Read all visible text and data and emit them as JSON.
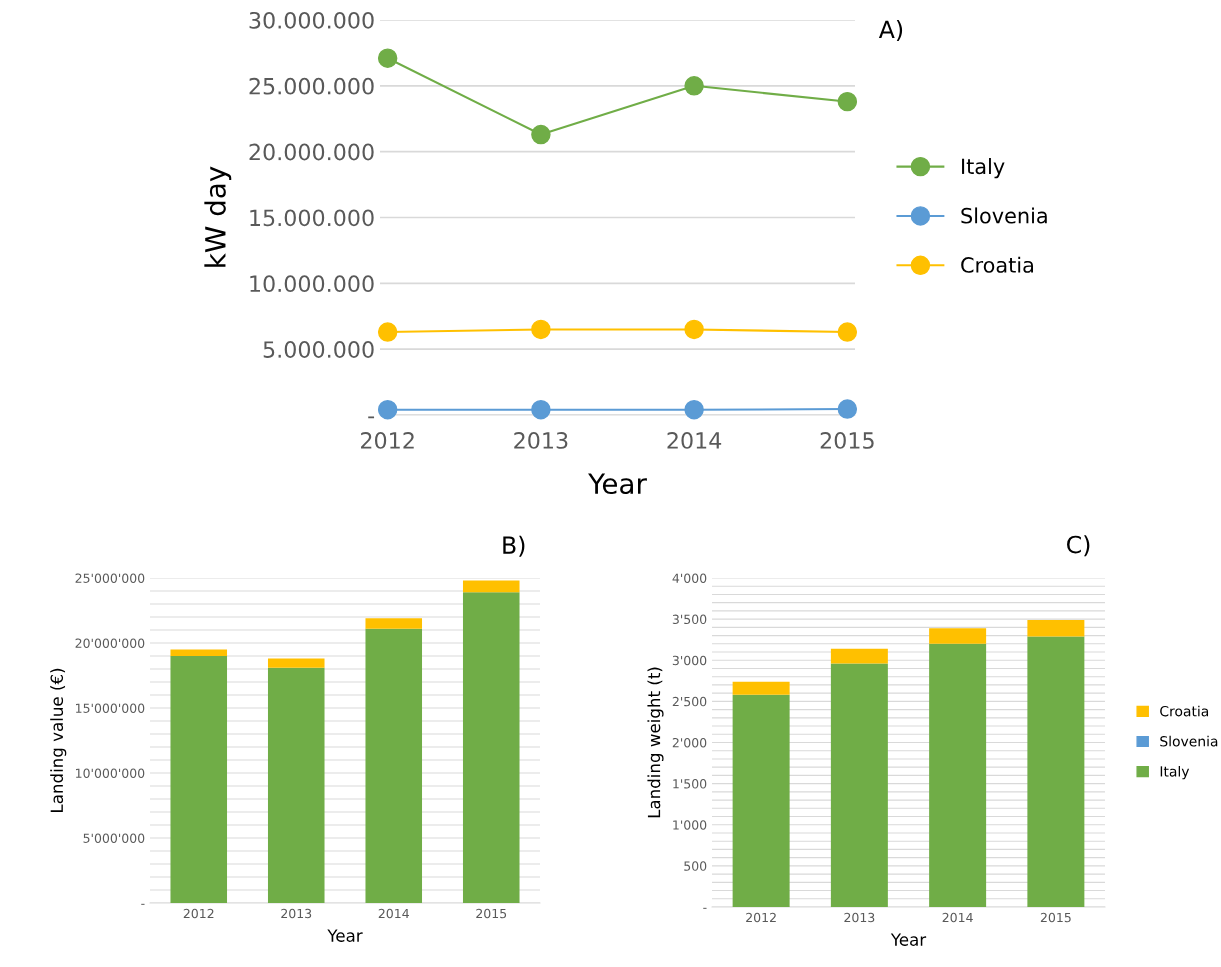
{
  "chart_data": [
    {
      "type": "line",
      "xlabel": "Year",
      "ylabel": "kW day",
      "annotations": [
        "A)"
      ],
      "categories": [
        "2012",
        "2013",
        "2014",
        "2015"
      ],
      "series": [
        {
          "name": "Italy",
          "color": "#70ad47",
          "values": [
            27100000,
            21300000,
            25000000,
            23800000
          ]
        },
        {
          "name": "Slovenia",
          "color": "#5b9bd5",
          "values": [
            400000,
            400000,
            400000,
            450000
          ]
        },
        {
          "name": "Croatia",
          "color": "#ffc000",
          "values": [
            6300000,
            6500000,
            6500000,
            6300000
          ]
        }
      ],
      "ylim": [
        0,
        30000000
      ],
      "yticks": [
        {
          "value": 0,
          "label": "-"
        },
        {
          "value": 5000000,
          "label": "5.000.000"
        },
        {
          "value": 10000000,
          "label": "10.000.000"
        },
        {
          "value": 15000000,
          "label": "15.000.000"
        },
        {
          "value": 20000000,
          "label": "20.000.000"
        },
        {
          "value": 25000000,
          "label": "25.000.000"
        },
        {
          "value": 30000000,
          "label": "30.000.000"
        }
      ],
      "grid": "y",
      "legend": "right",
      "marker": "circle",
      "line_style": "solid"
    },
    {
      "type": "bar",
      "stacked": true,
      "xlabel": "Year",
      "ylabel": "Landing value (€)",
      "annotations": [
        "B)"
      ],
      "categories": [
        "2012",
        "2013",
        "2014",
        "2015"
      ],
      "series": [
        {
          "color": "#70ad47",
          "values": [
            19000000,
            18100000,
            21100000,
            23900000
          ]
        },
        {
          "color": "#5b9bd5",
          "values": [
            0,
            0,
            0,
            0
          ]
        },
        {
          "color": "#ffc000",
          "values": [
            500000,
            700000,
            800000,
            900000
          ]
        }
      ],
      "ylim": [
        0,
        25000000
      ],
      "yticks": [
        {
          "value": 0,
          "label": "-"
        },
        {
          "value": 1000000,
          "label": null
        },
        {
          "value": 2000000,
          "label": null
        },
        {
          "value": 3000000,
          "label": null
        },
        {
          "value": 4000000,
          "label": null
        },
        {
          "value": 5000000,
          "label": "5'000'000"
        },
        {
          "value": 6000000,
          "label": null
        },
        {
          "value": 7000000,
          "label": null
        },
        {
          "value": 8000000,
          "label": null
        },
        {
          "value": 9000000,
          "label": null
        },
        {
          "value": 10000000,
          "label": "10'000'000"
        },
        {
          "value": 11000000,
          "label": null
        },
        {
          "value": 12000000,
          "label": null
        },
        {
          "value": 13000000,
          "label": null
        },
        {
          "value": 14000000,
          "label": null
        },
        {
          "value": 15000000,
          "label": "15'000'000"
        },
        {
          "value": 16000000,
          "label": null
        },
        {
          "value": 17000000,
          "label": null
        },
        {
          "value": 18000000,
          "label": null
        },
        {
          "value": 19000000,
          "label": null
        },
        {
          "value": 20000000,
          "label": "20'000'000"
        },
        {
          "value": 21000000,
          "label": null
        },
        {
          "value": 22000000,
          "label": null
        },
        {
          "value": 23000000,
          "label": null
        },
        {
          "value": 24000000,
          "label": null
        },
        {
          "value": 25000000,
          "label": "25'000'000"
        }
      ],
      "grid": "y"
    },
    {
      "type": "bar",
      "stacked": true,
      "xlabel": "Year",
      "ylabel": "Landing weight (t)",
      "annotations": [
        "C)"
      ],
      "categories": [
        "2012",
        "2013",
        "2014",
        "2015"
      ],
      "series": [
        {
          "name": "Italy",
          "color": "#70ad47",
          "values": [
            2580,
            2960,
            3200,
            3290
          ]
        },
        {
          "name": "Slovenia",
          "color": "#5b9bd5",
          "values": [
            0,
            0,
            0,
            0
          ]
        },
        {
          "name": "Croatia",
          "color": "#ffc000",
          "values": [
            160,
            180,
            190,
            200
          ]
        }
      ],
      "ylim": [
        0,
        4000
      ],
      "yticks": [
        {
          "value": 0,
          "label": "-"
        },
        {
          "value": 100,
          "label": null
        },
        {
          "value": 200,
          "label": null
        },
        {
          "value": 300,
          "label": null
        },
        {
          "value": 400,
          "label": null
        },
        {
          "value": 500,
          "label": "500"
        },
        {
          "value": 600,
          "label": null
        },
        {
          "value": 700,
          "label": null
        },
        {
          "value": 800,
          "label": null
        },
        {
          "value": 900,
          "label": null
        },
        {
          "value": 1000,
          "label": "1'000"
        },
        {
          "value": 1100,
          "label": null
        },
        {
          "value": 1200,
          "label": null
        },
        {
          "value": 1300,
          "label": null
        },
        {
          "value": 1400,
          "label": null
        },
        {
          "value": 1500,
          "label": "1'500"
        },
        {
          "value": 1600,
          "label": null
        },
        {
          "value": 1700,
          "label": null
        },
        {
          "value": 1800,
          "label": null
        },
        {
          "value": 1900,
          "label": null
        },
        {
          "value": 2000,
          "label": "2'000"
        },
        {
          "value": 2100,
          "label": null
        },
        {
          "value": 2200,
          "label": null
        },
        {
          "value": 2300,
          "label": null
        },
        {
          "value": 2400,
          "label": null
        },
        {
          "value": 2500,
          "label": "2'500"
        },
        {
          "value": 2600,
          "label": null
        },
        {
          "value": 2700,
          "label": null
        },
        {
          "value": 2800,
          "label": null
        },
        {
          "value": 2900,
          "label": null
        },
        {
          "value": 3000,
          "label": "3'000"
        },
        {
          "value": 3100,
          "label": null
        },
        {
          "value": 3200,
          "label": null
        },
        {
          "value": 3300,
          "label": null
        },
        {
          "value": 3400,
          "label": null
        },
        {
          "value": 3500,
          "label": "3'500"
        },
        {
          "value": 3600,
          "label": null
        },
        {
          "value": 3700,
          "label": null
        },
        {
          "value": 3800,
          "label": null
        },
        {
          "value": 3900,
          "label": null
        },
        {
          "value": 4000,
          "label": "4'000"
        }
      ],
      "grid": "y",
      "legend": "right"
    }
  ]
}
